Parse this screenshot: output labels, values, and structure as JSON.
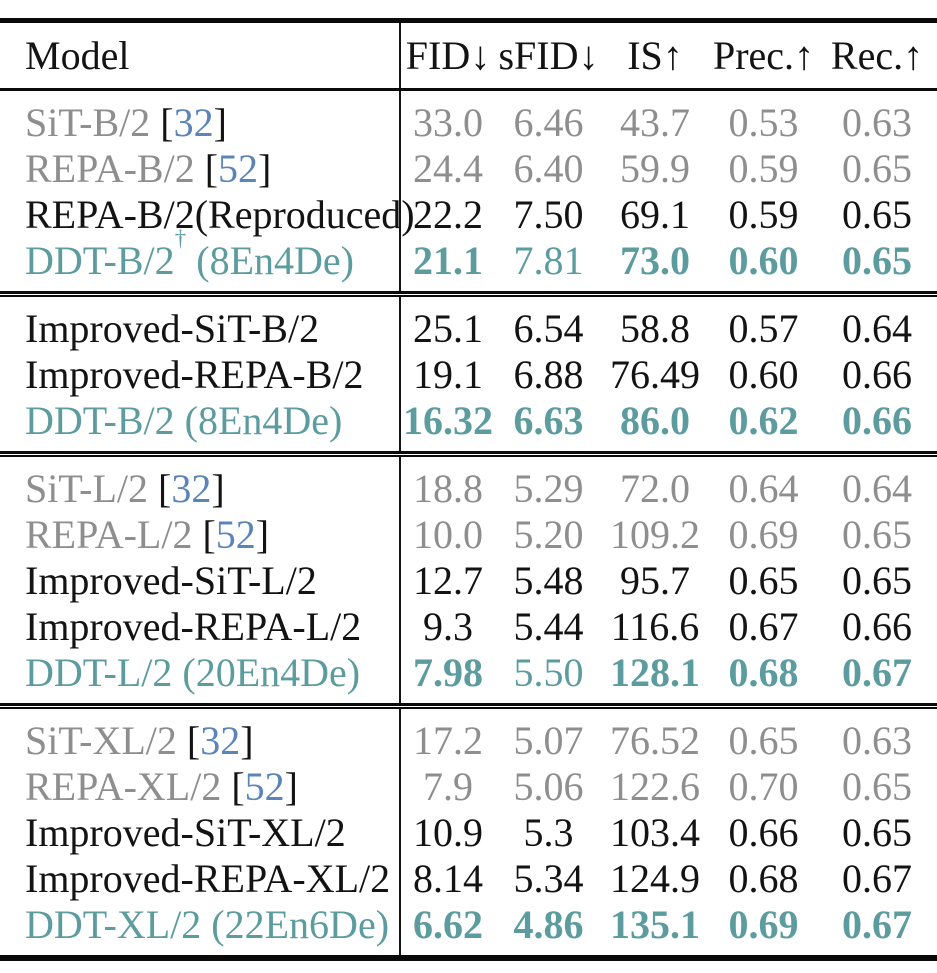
{
  "table": {
    "colors": {
      "gray": "#8e8e8e",
      "black": "#131313",
      "teal": "#5d9c9e",
      "cite_blue": "#5b84ba",
      "rule": "#0a0a0a"
    },
    "header": {
      "model": "Model",
      "metrics": [
        "FID↓",
        "sFID↓",
        "IS↑",
        "Prec.↑",
        "Rec.↑"
      ]
    },
    "sections": [
      {
        "rows": [
          {
            "name": "SiT-B/2",
            "cite": "32",
            "color": "gray",
            "values": [
              "33.0",
              "6.46",
              "43.7",
              "0.53",
              "0.63"
            ]
          },
          {
            "name": "REPA-B/2",
            "cite": "52",
            "color": "gray",
            "values": [
              "24.4",
              "6.40",
              "59.9",
              "0.59",
              "0.65"
            ]
          },
          {
            "name": "REPA-B/2(Reproduced)",
            "color": "black",
            "values": [
              "22.2",
              "7.50",
              "69.1",
              "0.59",
              "0.65"
            ]
          },
          {
            "name": "DDT-B/2",
            "sup": "†",
            "suffix": " (8En4De)",
            "color": "teal",
            "values": [
              "21.1",
              "7.81",
              "73.0",
              "0.60",
              "0.65"
            ],
            "bold": [
              true,
              false,
              true,
              true,
              true
            ]
          }
        ]
      },
      {
        "rows": [
          {
            "name": "Improved-SiT-B/2",
            "color": "black",
            "values": [
              "25.1",
              "6.54",
              "58.8",
              "0.57",
              "0.64"
            ]
          },
          {
            "name": "Improved-REPA-B/2",
            "color": "black",
            "values": [
              "19.1",
              "6.88",
              "76.49",
              "0.60",
              "0.66"
            ]
          },
          {
            "name": "DDT-B/2",
            "suffix": " (8En4De)",
            "color": "teal",
            "values": [
              "16.32",
              "6.63",
              "86.0",
              "0.62",
              "0.66"
            ],
            "bold": [
              true,
              true,
              true,
              true,
              true
            ]
          }
        ]
      },
      {
        "rows": [
          {
            "name": "SiT-L/2",
            "cite": "32",
            "color": "gray",
            "values": [
              "18.8",
              "5.29",
              "72.0",
              "0.64",
              "0.64"
            ]
          },
          {
            "name": "REPA-L/2",
            "cite": "52",
            "color": "gray",
            "values": [
              "10.0",
              "5.20",
              "109.2",
              "0.69",
              "0.65"
            ]
          },
          {
            "name": "Improved-SiT-L/2",
            "color": "black",
            "values": [
              "12.7",
              "5.48",
              "95.7",
              "0.65",
              "0.65"
            ]
          },
          {
            "name": "Improved-REPA-L/2",
            "color": "black",
            "values": [
              "9.3",
              "5.44",
              "116.6",
              "0.67",
              "0.66"
            ]
          },
          {
            "name": "DDT-L/2",
            "suffix": " (20En4De)",
            "color": "teal",
            "values": [
              "7.98",
              "5.50",
              "128.1",
              "0.68",
              "0.67"
            ],
            "bold": [
              true,
              false,
              true,
              true,
              true
            ]
          }
        ]
      },
      {
        "rows": [
          {
            "name": "SiT-XL/2",
            "cite": "32",
            "color": "gray",
            "values": [
              "17.2",
              "5.07",
              "76.52",
              "0.65",
              "0.63"
            ]
          },
          {
            "name": "REPA-XL/2",
            "cite": "52",
            "color": "gray",
            "values": [
              "7.9",
              "5.06",
              "122.6",
              "0.70",
              "0.65"
            ]
          },
          {
            "name": "Improved-SiT-XL/2",
            "color": "black",
            "values": [
              "10.9",
              "5.3",
              "103.4",
              "0.66",
              "0.65"
            ]
          },
          {
            "name": "Improved-REPA-XL/2",
            "color": "black",
            "values": [
              "8.14",
              "5.34",
              "124.9",
              "0.68",
              "0.67"
            ]
          },
          {
            "name": "DDT-XL/2",
            "suffix": " (22En6De)",
            "color": "teal",
            "values": [
              "6.62",
              "4.86",
              "135.1",
              "0.69",
              "0.67"
            ],
            "bold": [
              true,
              true,
              true,
              true,
              true
            ]
          }
        ]
      }
    ]
  }
}
